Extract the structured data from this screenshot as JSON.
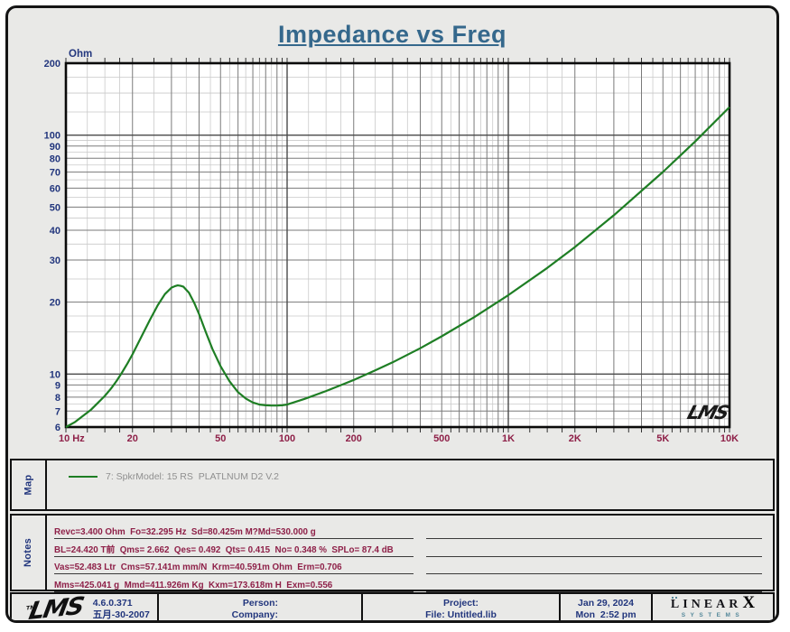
{
  "title": "Impedance vs Freq",
  "colors": {
    "curve_green": "#1e7e24",
    "title_teal": "#35688c",
    "y_label_navy": "#22367d",
    "x_label_maroon": "#8e2048",
    "notes_maroon": "#8e2048",
    "grid_major": "#7a7a7a",
    "grid_minor": "#c9c9c9",
    "grid_decade": "#4a4a4a"
  },
  "chart_data": {
    "type": "line",
    "title": "Impedance vs Freq",
    "x_axis": {
      "scale": "log",
      "min": 10,
      "max": 10000,
      "tick_values": [
        10,
        20,
        50,
        100,
        200,
        500,
        1000,
        2000,
        5000,
        10000
      ],
      "tick_labels": [
        "10 Hz",
        "20",
        "50",
        "100",
        "200",
        "500",
        "1K",
        "2K",
        "5K",
        "10K"
      ]
    },
    "y_axis": {
      "label": "Ohm",
      "scale": "log",
      "min": 6,
      "max": 200,
      "tick_values": [
        200,
        100,
        90,
        80,
        70,
        60,
        50,
        40,
        30,
        20,
        10,
        9,
        8,
        7,
        6
      ]
    },
    "grid": "log-log fine grid",
    "legend_position": "map-strip-below",
    "watermark": "LMS",
    "series": [
      {
        "name": "7: SpkrModel: 15 RS  PLATLNUM D2 V.2",
        "color": "#1e7e24",
        "points": [
          [
            10,
            6.0
          ],
          [
            11,
            6.3
          ],
          [
            12,
            6.7
          ],
          [
            13,
            7.1
          ],
          [
            14,
            7.6
          ],
          [
            15,
            8.1
          ],
          [
            16,
            8.7
          ],
          [
            17,
            9.4
          ],
          [
            18,
            10.2
          ],
          [
            19,
            11.1
          ],
          [
            20,
            12.1
          ],
          [
            22,
            14.4
          ],
          [
            24,
            16.9
          ],
          [
            26,
            19.4
          ],
          [
            28,
            21.6
          ],
          [
            30,
            23.0
          ],
          [
            31,
            23.3
          ],
          [
            32,
            23.5
          ],
          [
            33,
            23.4
          ],
          [
            34,
            23.2
          ],
          [
            36,
            21.9
          ],
          [
            38,
            19.9
          ],
          [
            40,
            17.8
          ],
          [
            43,
            14.9
          ],
          [
            46,
            12.7
          ],
          [
            50,
            10.8
          ],
          [
            55,
            9.3
          ],
          [
            60,
            8.4
          ],
          [
            65,
            7.9
          ],
          [
            70,
            7.6
          ],
          [
            75,
            7.45
          ],
          [
            80,
            7.4
          ],
          [
            85,
            7.38
          ],
          [
            90,
            7.38
          ],
          [
            95,
            7.4
          ],
          [
            100,
            7.45
          ],
          [
            120,
            7.87
          ],
          [
            150,
            8.49
          ],
          [
            200,
            9.44
          ],
          [
            250,
            10.35
          ],
          [
            300,
            11.2
          ],
          [
            400,
            12.83
          ],
          [
            500,
            14.38
          ],
          [
            700,
            17.28
          ],
          [
            1000,
            21.4
          ],
          [
            1500,
            27.8
          ],
          [
            2000,
            34.0
          ],
          [
            3000,
            46.2
          ],
          [
            5000,
            70.1
          ],
          [
            7000,
            94.1
          ],
          [
            10000,
            131
          ]
        ]
      }
    ]
  },
  "map": {
    "label": "Map",
    "legend_text": "7: SpkrModel: 15 RS  PLATLNUM D2 V.2",
    "legend_color": "#1e7e24"
  },
  "notes": {
    "label": "Notes",
    "lines": [
      "Revc=3.400 Ohm  Fo=32.295 Hz  Sd=80.425m M?Md=530.000 g",
      "BL=24.420 T前  Qms= 2.662  Qes= 0.492  Qts= 0.415  No= 0.348 %  SPLo= 87.4 dB",
      "Vas=52.483 Ltr  Cms=57.141m mm/N  Krm=40.591m Ohm  Erm=0.706",
      "Mms=425.041 g  Mmd=411.926m Kg  Kxm=173.618m H  Exm=0.556"
    ]
  },
  "footer": {
    "logo_text": "LMS",
    "logo_tm": "TM",
    "version": "4.6.0.371",
    "version_date": "五月-30-2007",
    "person_label": "Person:",
    "company_label": "Company:",
    "project_label": "Project:",
    "file_label": "File: Untitled.lib",
    "date": "Jan 29, 2024",
    "time": "Mon  2:52 pm",
    "brand_name": "LINEAR",
    "brand_x": "X",
    "brand_sub": "SYSTEMS"
  }
}
